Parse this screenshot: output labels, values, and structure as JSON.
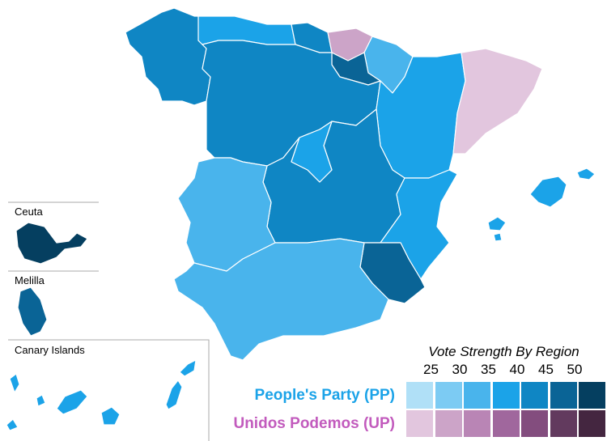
{
  "legend": {
    "title": "Vote Strength By Region",
    "ticks": [
      "25",
      "30",
      "35",
      "40",
      "45",
      "50"
    ],
    "parties": [
      {
        "name": "People's Party (PP)",
        "color": "#1ba3e8",
        "scale": [
          "#b0e0f7",
          "#7ccbf3",
          "#49b4ec",
          "#1ba3e8",
          "#0f86c4",
          "#0a6496",
          "#053f60"
        ]
      },
      {
        "name": "Unidos Podemos (UP)",
        "color": "#c25bbd",
        "scale": [
          "#e2c6de",
          "#cca4c8",
          "#b985b5",
          "#a0679d",
          "#834d7e",
          "#623a5e",
          "#442640"
        ]
      }
    ]
  },
  "insets": {
    "ceuta": "Ceuta",
    "melilla": "Melilla",
    "canary": "Canary Islands"
  },
  "regions": {
    "galicia": "#0f86c4",
    "asturias": "#1ba3e8",
    "cantabria": "#0f86c4",
    "basque": "#cca4c8",
    "navarra": "#49b4ec",
    "rioja": "#0a6496",
    "castilla_leon": "#0f86c4",
    "aragon": "#1ba3e8",
    "catalonia": "#e2c6de",
    "madrid": "#1ba3e8",
    "castilla_la_mancha": "#0f86c4",
    "extremadura": "#49b4ec",
    "valencia": "#1ba3e8",
    "murcia": "#0a6496",
    "andalusia": "#49b4ec",
    "balearic": "#1ba3e8",
    "ceuta": "#053f60",
    "melilla": "#0a6496",
    "canary": "#1ba3e8"
  }
}
